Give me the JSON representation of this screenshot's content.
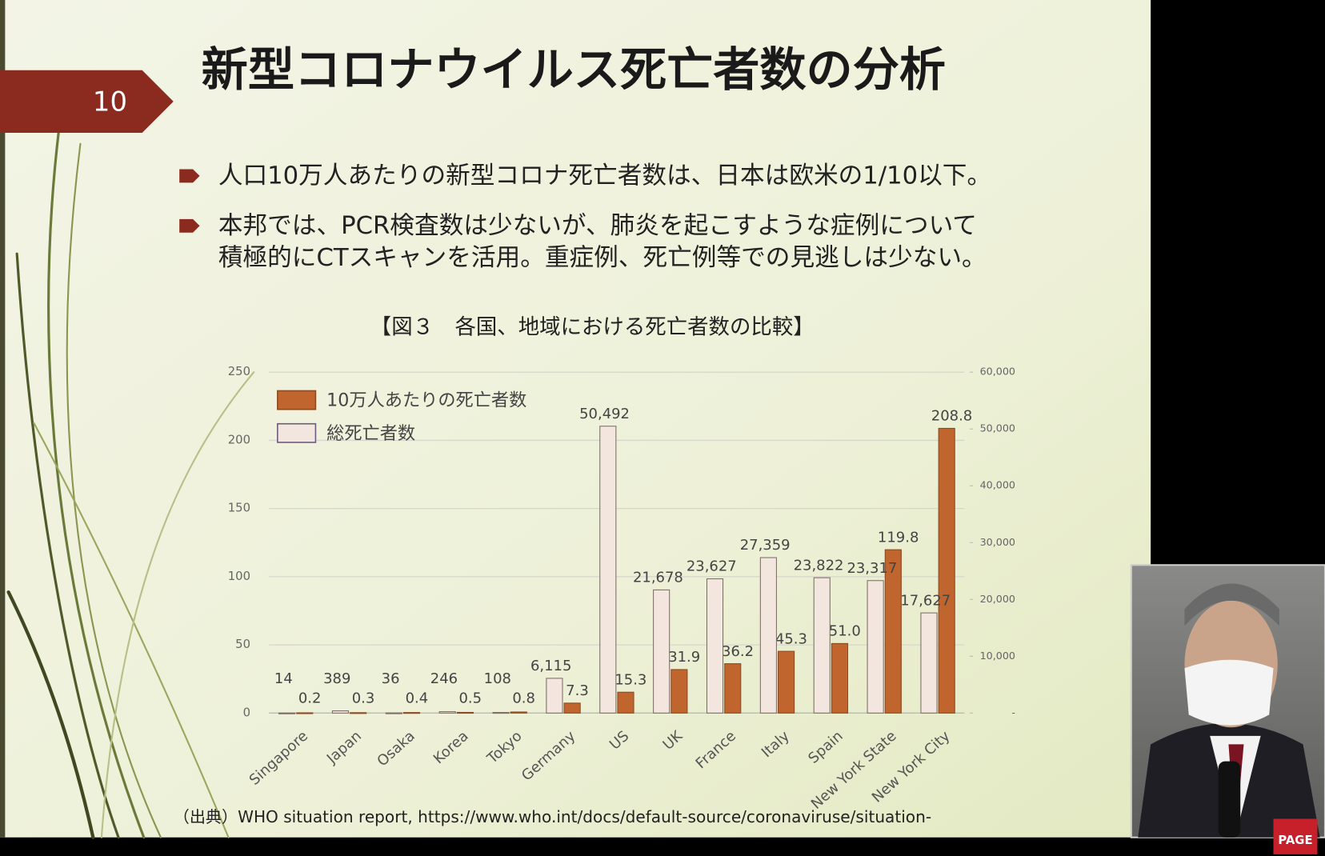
{
  "slide": {
    "page_number": "10",
    "title": "新型コロナウイルス死亡者数の分析",
    "bullets": [
      {
        "lines": [
          "人口10万人あたりの新型コロナ死亡者数は、日本は欧米の1/10以下。"
        ]
      },
      {
        "lines": [
          "本邦では、PCR検査数は少ないが、肺炎を起こすような症例について",
          "積極的にCTスキャンを活用。重症例、死亡例等での見逃しは少ない。"
        ]
      }
    ],
    "source": "（出典）WHO situation report, https://www.who.int/docs/default-source/coronaviruse/situation-"
  },
  "logo": "PAGE",
  "chart_data": {
    "type": "bar",
    "title": "【図３　各国、地域における死亡者数の比較】",
    "categories": [
      "Singapore",
      "Japan",
      "Osaka",
      "Korea",
      "Tokyo",
      "Germany",
      "US",
      "UK",
      "France",
      "Italy",
      "Spain",
      "New York State",
      "New York City"
    ],
    "series": [
      {
        "name": "10万人あたりの死亡者数",
        "color": "#c0652d",
        "values": [
          0.2,
          0.3,
          0.4,
          0.5,
          0.8,
          7.3,
          15.3,
          31.9,
          36.2,
          45.3,
          51.0,
          119.8,
          208.8
        ],
        "value_labels": [
          "0.2",
          "0.3",
          "0.4",
          "0.5",
          "0.8",
          "7.3",
          "15.3",
          "31.9",
          "36.2",
          "45.3",
          "51.0",
          "119.8",
          "208.8"
        ]
      },
      {
        "name": "総死亡者数",
        "color": "#f3e6de",
        "axis": "y2",
        "values": [
          14,
          389,
          36,
          246,
          108,
          6115,
          50492,
          21678,
          23627,
          27359,
          23822,
          23317,
          17627
        ],
        "value_labels": [
          "14",
          "389",
          "36",
          "246",
          "108",
          "6,115",
          "50,492",
          "21,678",
          "23,627",
          "27,359",
          "23,822",
          "23,317",
          "17,627"
        ]
      }
    ],
    "ylim": [
      0,
      250
    ],
    "yticks": [
      0,
      50,
      100,
      150,
      200,
      250
    ],
    "y2lim": [
      0,
      60000
    ],
    "y2ticks": [
      {
        "value": 0,
        "label": "-"
      },
      {
        "value": 10000,
        "label": "10,000"
      },
      {
        "value": 20000,
        "label": "20,000"
      },
      {
        "value": 30000,
        "label": "30,000"
      },
      {
        "value": 40000,
        "label": "40,000"
      },
      {
        "value": 50000,
        "label": "50,000"
      },
      {
        "value": 60000,
        "label": "60,000"
      }
    ],
    "grid": true,
    "legend": "upper left"
  }
}
